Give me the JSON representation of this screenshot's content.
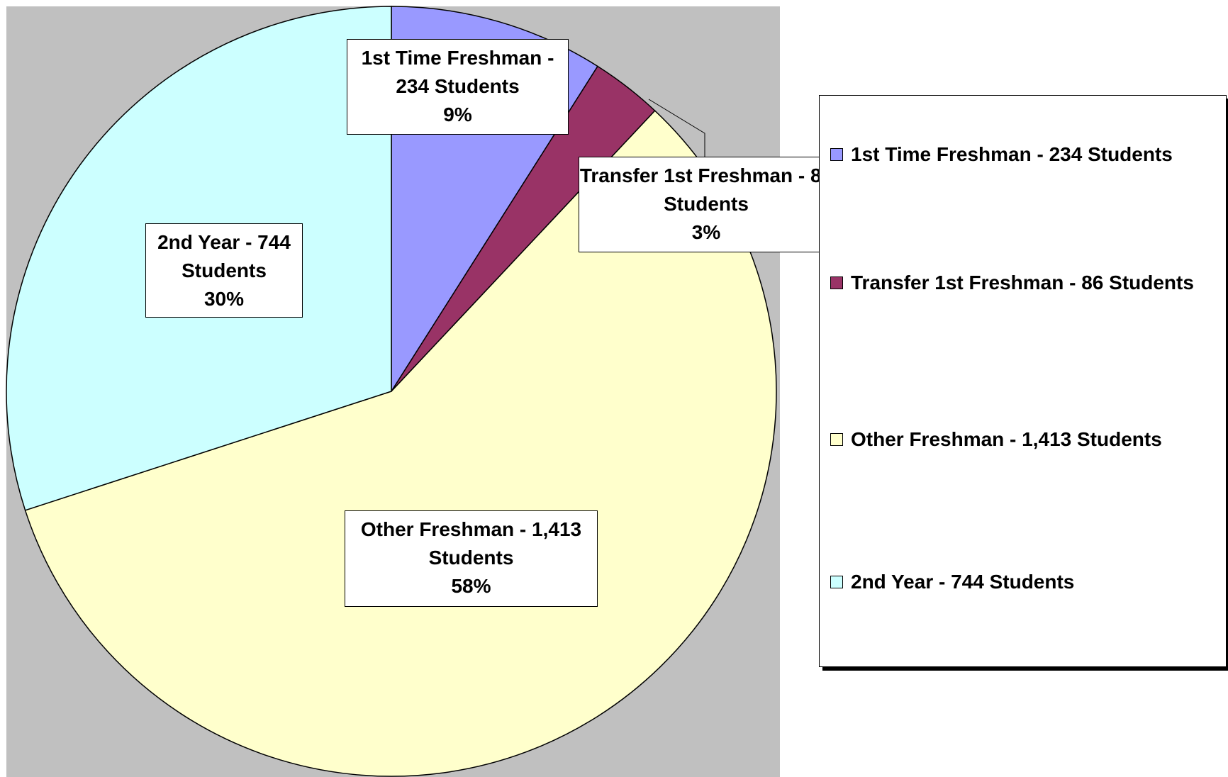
{
  "chart_data": {
    "type": "pie",
    "categories": [
      "1st Time Freshman - 234 Students",
      "Transfer 1st Freshman - 86 Students",
      "Other Freshman - 1,413 Students",
      "2nd Year - 744 Students"
    ],
    "values": [
      9,
      3,
      58,
      30
    ],
    "value_labels": [
      "9%",
      "3%",
      "58%",
      "30%"
    ],
    "colors": [
      "#9999ff",
      "#993366",
      "#ffffcc",
      "#ccffff"
    ],
    "legend": "right"
  }
}
